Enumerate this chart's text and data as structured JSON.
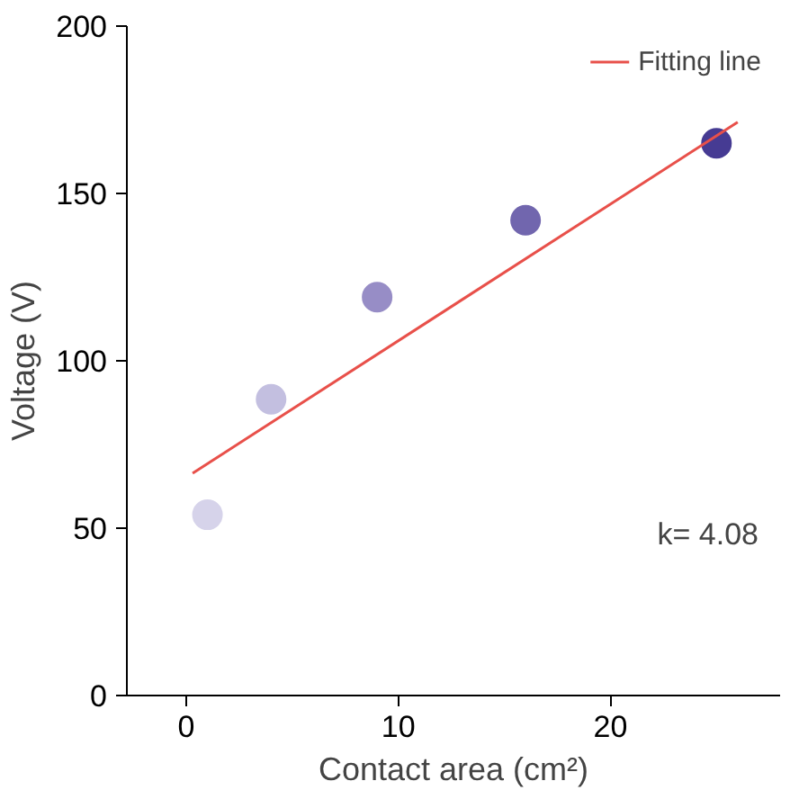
{
  "chart_data": {
    "type": "scatter",
    "xlabel": "Contact area (cm²)",
    "ylabel": "Voltage (V)",
    "xlim": [
      -2.8,
      28
    ],
    "xticks": [
      0,
      10,
      20
    ],
    "ylim": [
      0,
      200
    ],
    "yticks": [
      0,
      50,
      100,
      150,
      200
    ],
    "grid": false,
    "legend": "top right",
    "series": [
      {
        "marker": "circle",
        "x": [
          1,
          4,
          9,
          16,
          25
        ],
        "values": [
          54,
          88.5,
          119,
          142,
          165
        ],
        "colors": [
          "#d6d3ea",
          "#c3bfe0",
          "#978dc6",
          "#7166ae",
          "#463b93"
        ]
      },
      {
        "type": "line",
        "name": "Fitting line",
        "color": "#e8504a",
        "x": [
          0.3,
          26
        ],
        "values": [
          66.4,
          171.3
        ],
        "line_style": "solid",
        "marker": "none"
      }
    ],
    "annotations": [
      "k= 4.08"
    ]
  }
}
